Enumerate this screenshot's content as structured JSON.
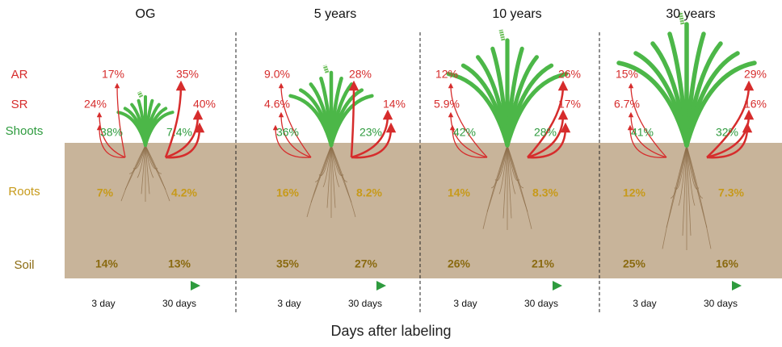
{
  "row_labels": [
    "AR",
    "SR",
    "Shoots",
    "Roots",
    "Soil"
  ],
  "panels": [
    {
      "title": "OG",
      "ar": [
        "17%",
        "35%"
      ],
      "sr": [
        "24%",
        "40%"
      ],
      "shoots": [
        "38%",
        "7.4%"
      ],
      "roots": [
        "7%",
        "4.2%"
      ],
      "soil": [
        "14%",
        "13%"
      ],
      "time_labels": [
        "3 day",
        "30 days"
      ]
    },
    {
      "title": "5 years",
      "ar": [
        "9.0%",
        "28%"
      ],
      "sr": [
        "4.6%",
        "14%"
      ],
      "shoots": [
        "36%",
        "23%"
      ],
      "roots": [
        "16%",
        "8.2%"
      ],
      "soil": [
        "35%",
        "27%"
      ],
      "time_labels": [
        "3 day",
        "30 days"
      ]
    },
    {
      "title": "10 years",
      "ar": [
        "12%",
        "26%"
      ],
      "sr": [
        "5.9%",
        "17%"
      ],
      "shoots": [
        "42%",
        "28%"
      ],
      "roots": [
        "14%",
        "8.3%"
      ],
      "soil": [
        "26%",
        "21%"
      ],
      "time_labels": [
        "3 day",
        "30 days"
      ]
    },
    {
      "title": "30 years",
      "ar": [
        "15%",
        "29%"
      ],
      "sr": [
        "6.7%",
        "16%"
      ],
      "shoots": [
        "41%",
        "32%"
      ],
      "roots": [
        "12%",
        "7.3%"
      ],
      "soil": [
        "25%",
        "16%"
      ],
      "time_labels": [
        "3 day",
        "30 days"
      ]
    }
  ],
  "x_label": "Days after labeling"
}
